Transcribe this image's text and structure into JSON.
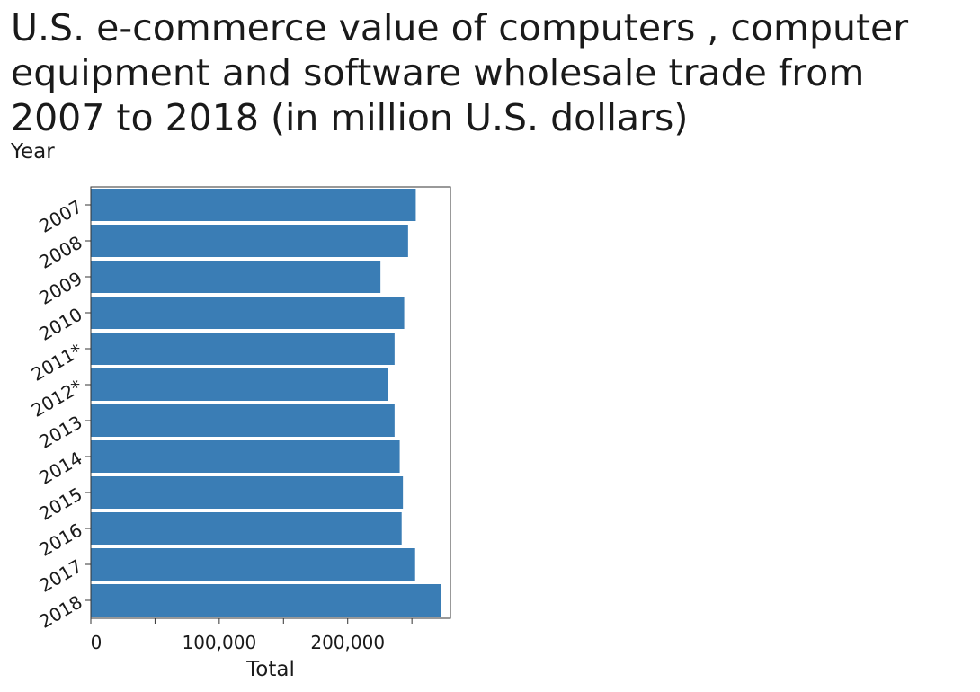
{
  "chart_data": {
    "type": "bar",
    "orientation": "horizontal",
    "title": "U.S. e-commerce value of computers , computer equipment and software wholesale trade from\n2007 to 2018 (in million U.S. dollars)",
    "xlabel": "Total",
    "ylabel": "Year",
    "categories": [
      "2007",
      "2008",
      "2009",
      "2010",
      "2011*",
      "2012*",
      "2013",
      "2014",
      "2015",
      "2016",
      "2017",
      "2018"
    ],
    "values": [
      253000,
      247000,
      225500,
      244000,
      236500,
      231500,
      236500,
      240500,
      243000,
      242000,
      252500,
      273000
    ],
    "xlim": [
      0,
      280000
    ],
    "xticks": [
      0,
      100000,
      200000
    ],
    "xtick_labels": [
      "0",
      "100,000",
      "200,000"
    ],
    "bar_color": "#3a7db5",
    "grid": false
  }
}
